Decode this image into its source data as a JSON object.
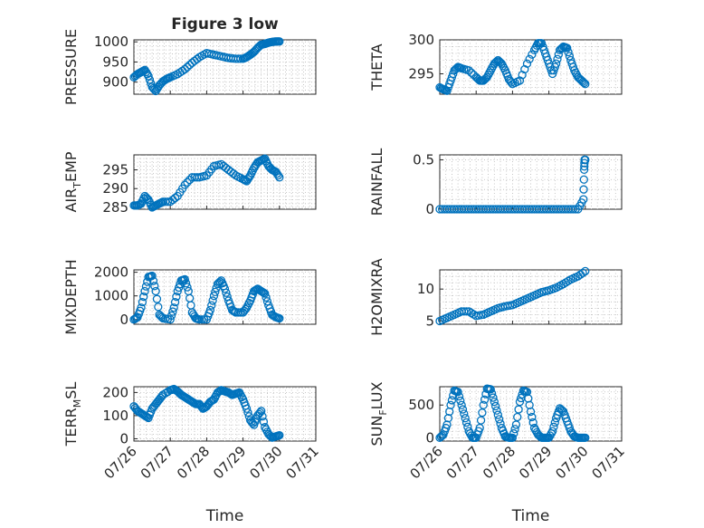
{
  "chart_data": [
    {
      "type": "scatter",
      "title": "Figure 3 low",
      "ylabel": "PRESSURE",
      "xlabel": "",
      "xlim": [
        "2024-07-26",
        "2024-07-31"
      ],
      "ylim": [
        870,
        1005
      ],
      "yticks": [
        900,
        950,
        1000
      ],
      "xticklabels": [],
      "series": [
        {
          "x": [
            0.0,
            0.1,
            0.2,
            0.3,
            0.4,
            0.5,
            0.6,
            0.7,
            0.8,
            0.9,
            1.0,
            1.2,
            1.4,
            1.6,
            1.8,
            2.0,
            2.2,
            2.4,
            2.6,
            2.8,
            3.0,
            3.1,
            3.2,
            3.3,
            3.4,
            3.5,
            3.6,
            3.7,
            3.8,
            3.9,
            4.0
          ],
          "y": [
            912,
            920,
            925,
            930,
            915,
            888,
            878,
            892,
            902,
            908,
            912,
            920,
            932,
            948,
            962,
            972,
            968,
            964,
            960,
            958,
            958,
            962,
            968,
            975,
            985,
            993,
            995,
            998,
            1000,
            1001,
            1001
          ]
        }
      ]
    },
    {
      "type": "scatter",
      "ylabel": "THETA",
      "xlabel": "",
      "xlim": [
        "2024-07-26",
        "2024-07-31"
      ],
      "ylim": [
        292,
        300
      ],
      "yticks": [
        295,
        300
      ],
      "xticklabels": [],
      "series": [
        {
          "x": [
            0.0,
            0.1,
            0.2,
            0.3,
            0.4,
            0.5,
            0.6,
            0.8,
            1.0,
            1.1,
            1.2,
            1.3,
            1.4,
            1.5,
            1.6,
            1.7,
            1.8,
            1.9,
            2.0,
            2.2,
            2.4,
            2.6,
            2.7,
            2.8,
            2.9,
            3.0,
            3.1,
            3.2,
            3.3,
            3.4,
            3.5,
            3.6,
            3.7,
            3.8,
            3.9,
            4.0
          ],
          "y": [
            293.0,
            292.7,
            292.5,
            294.0,
            295.5,
            296.0,
            295.8,
            295.5,
            294.5,
            294.0,
            294.0,
            294.5,
            295.5,
            296.5,
            297.0,
            296.5,
            295.5,
            294.2,
            293.5,
            294.0,
            296.5,
            298.5,
            299.5,
            299.5,
            298.0,
            296.5,
            295.0,
            296.5,
            298.5,
            299.0,
            298.8,
            297.0,
            295.5,
            294.5,
            294.0,
            293.5
          ]
        }
      ]
    },
    {
      "type": "scatter",
      "ylabel": "AIR_TEMP",
      "xlabel": "",
      "xlim": [
        "2024-07-26",
        "2024-07-31"
      ],
      "ylim": [
        284.5,
        299
      ],
      "yticks": [
        285,
        290,
        295
      ],
      "xticklabels": [],
      "series": [
        {
          "x": [
            0.0,
            0.1,
            0.2,
            0.3,
            0.4,
            0.5,
            0.6,
            0.7,
            0.8,
            1.0,
            1.2,
            1.4,
            1.6,
            1.8,
            2.0,
            2.2,
            2.4,
            2.6,
            2.8,
            3.0,
            3.1,
            3.2,
            3.3,
            3.4,
            3.5,
            3.6,
            3.7,
            3.8,
            3.9,
            4.0
          ],
          "y": [
            285.5,
            285.5,
            286.0,
            288.0,
            287.0,
            285.0,
            285.5,
            286.0,
            286.5,
            286.5,
            288.0,
            291.0,
            293.0,
            293.0,
            293.5,
            296.0,
            296.5,
            295.0,
            293.5,
            292.5,
            292.0,
            293.5,
            295.5,
            297.0,
            297.5,
            298.0,
            296.0,
            295.0,
            294.5,
            293.0
          ]
        }
      ]
    },
    {
      "type": "scatter",
      "ylabel": "RAINFALL",
      "xlabel": "",
      "xlim": [
        "2024-07-26",
        "2024-07-31"
      ],
      "ylim": [
        0,
        0.55
      ],
      "yticks": [
        0,
        0.5
      ],
      "xticklabels": [],
      "series": [
        {
          "x": [
            0.0,
            0.2,
            0.4,
            0.6,
            0.8,
            1.0,
            1.2,
            1.4,
            1.6,
            1.8,
            2.0,
            2.2,
            2.4,
            2.6,
            2.8,
            3.0,
            3.2,
            3.4,
            3.6,
            3.8,
            3.95,
            3.97,
            3.98,
            4.0
          ],
          "y": [
            0,
            0,
            0,
            0,
            0,
            0,
            0,
            0,
            0,
            0,
            0,
            0,
            0,
            0,
            0,
            0,
            0,
            0,
            0,
            0,
            0.1,
            0.4,
            0.5,
            0.5
          ]
        }
      ]
    },
    {
      "type": "scatter",
      "ylabel": "MIXDEPTH",
      "xlabel": "",
      "xlim": [
        "2024-07-26",
        "2024-07-31"
      ],
      "ylim": [
        -200,
        2100
      ],
      "yticks": [
        0,
        1000,
        2000
      ],
      "xticklabels": [],
      "series": [
        {
          "x": [
            0.0,
            0.1,
            0.2,
            0.3,
            0.4,
            0.5,
            0.6,
            0.7,
            0.8,
            1.0,
            1.1,
            1.2,
            1.3,
            1.4,
            1.5,
            1.6,
            1.7,
            1.8,
            2.0,
            2.1,
            2.2,
            2.3,
            2.4,
            2.5,
            2.6,
            2.7,
            2.8,
            3.0,
            3.1,
            3.2,
            3.3,
            3.4,
            3.5,
            3.6,
            3.7,
            3.8,
            3.9,
            4.0
          ],
          "y": [
            0,
            100,
            500,
            1200,
            1800,
            1850,
            1200,
            200,
            50,
            0,
            500,
            1200,
            1650,
            1700,
            1200,
            300,
            50,
            0,
            0,
            400,
            1000,
            1500,
            1650,
            1300,
            800,
            400,
            300,
            300,
            500,
            800,
            1200,
            1300,
            1200,
            1100,
            600,
            200,
            100,
            50
          ]
        }
      ]
    },
    {
      "type": "scatter",
      "ylabel": "H2OMIXRA",
      "xlabel": "",
      "xlim": [
        "2024-07-26",
        "2024-07-31"
      ],
      "ylim": [
        4.5,
        13
      ],
      "yticks": [
        5,
        10
      ],
      "xticklabels": [],
      "series": [
        {
          "x": [
            0.0,
            0.2,
            0.4,
            0.6,
            0.8,
            1.0,
            1.2,
            1.4,
            1.6,
            1.8,
            2.0,
            2.2,
            2.4,
            2.6,
            2.8,
            3.0,
            3.2,
            3.4,
            3.6,
            3.8,
            4.0
          ],
          "y": [
            5.0,
            5.5,
            6.0,
            6.5,
            6.5,
            5.8,
            6.0,
            6.5,
            7.0,
            7.3,
            7.5,
            8.0,
            8.5,
            9.0,
            9.5,
            9.8,
            10.2,
            10.8,
            11.5,
            12.0,
            12.8
          ]
        }
      ]
    },
    {
      "type": "scatter",
      "ylabel": "TERR_MSL",
      "xlabel": "Time",
      "xlim": [
        "2024-07-26",
        "2024-07-31"
      ],
      "ylim": [
        -10,
        225
      ],
      "yticks": [
        0,
        100,
        200
      ],
      "xticklabels": [
        "07/26",
        "07/27",
        "07/28",
        "07/29",
        "07/30",
        "07/31"
      ],
      "series": [
        {
          "x": [
            0.0,
            0.1,
            0.2,
            0.3,
            0.4,
            0.5,
            0.6,
            0.7,
            0.8,
            1.0,
            1.1,
            1.2,
            1.3,
            1.4,
            1.5,
            1.6,
            1.7,
            1.8,
            1.9,
            2.0,
            2.1,
            2.2,
            2.3,
            2.4,
            2.5,
            2.6,
            2.7,
            2.8,
            2.9,
            3.0,
            3.1,
            3.2,
            3.3,
            3.4,
            3.5,
            3.6,
            3.7,
            3.8,
            3.9,
            4.0
          ],
          "y": [
            140,
            120,
            110,
            100,
            90,
            130,
            150,
            170,
            190,
            210,
            215,
            205,
            190,
            180,
            170,
            160,
            150,
            150,
            130,
            140,
            160,
            170,
            200,
            210,
            205,
            200,
            190,
            195,
            200,
            170,
            130,
            80,
            60,
            100,
            120,
            50,
            20,
            5,
            10,
            15
          ]
        }
      ]
    },
    {
      "type": "scatter",
      "ylabel": "SUN_FLUX",
      "xlabel": "Time",
      "xlim": [
        "2024-07-26",
        "2024-07-31"
      ],
      "ylim": [
        -50,
        780
      ],
      "yticks": [
        0,
        500
      ],
      "xticklabels": [
        "07/26",
        "07/27",
        "07/28",
        "07/29",
        "07/30",
        "07/31"
      ],
      "series": [
        {
          "x": [
            0.0,
            0.1,
            0.2,
            0.3,
            0.4,
            0.5,
            0.6,
            0.7,
            0.8,
            0.9,
            1.0,
            1.1,
            1.2,
            1.3,
            1.4,
            1.5,
            1.6,
            1.7,
            1.8,
            1.9,
            2.0,
            2.1,
            2.2,
            2.3,
            2.4,
            2.5,
            2.6,
            2.7,
            2.8,
            2.9,
            3.0,
            3.1,
            3.2,
            3.3,
            3.4,
            3.5,
            3.6,
            3.7,
            3.8,
            3.9,
            4.0
          ],
          "y": [
            0,
            50,
            200,
            500,
            720,
            700,
            500,
            300,
            100,
            0,
            0,
            150,
            500,
            750,
            740,
            550,
            350,
            150,
            20,
            0,
            0,
            200,
            550,
            720,
            700,
            400,
            150,
            50,
            0,
            0,
            0,
            100,
            300,
            450,
            400,
            250,
            100,
            20,
            0,
            0,
            0
          ]
        }
      ]
    }
  ]
}
